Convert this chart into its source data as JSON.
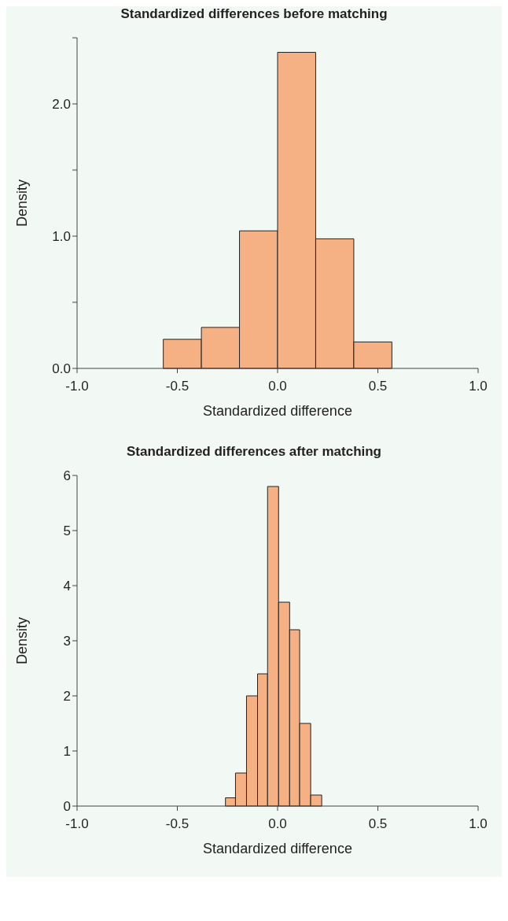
{
  "chart_data": [
    {
      "type": "histogram",
      "title": "Standardized differences before matching",
      "xlabel": "Standardized difference",
      "ylabel": "Density",
      "color": "#f5b183",
      "bins": [
        -0.57,
        -0.38,
        -0.19,
        0,
        0.19,
        0.38,
        0.57
      ],
      "values": [
        0.22,
        0.31,
        1.04,
        2.39,
        0.98,
        0.2
      ],
      "xlim": [
        -1,
        1
      ],
      "xticks": [
        {
          "value": -1,
          "label": "-1.0"
        },
        {
          "value": -0.5,
          "label": "-0.5"
        },
        {
          "value": 0,
          "label": "0.0"
        },
        {
          "value": 0.5,
          "label": "0.5"
        },
        {
          "value": 1,
          "label": "1.0"
        }
      ],
      "ylim": [
        0,
        2.5
      ],
      "yticks": [
        {
          "value": 0,
          "label": "0.0"
        },
        {
          "value": 0.5,
          "label": null
        },
        {
          "value": 1,
          "label": "1.0"
        },
        {
          "value": 1.5,
          "label": null
        },
        {
          "value": 2,
          "label": "2.0"
        },
        {
          "value": 2.5,
          "label": null
        }
      ],
      "grid": false
    },
    {
      "type": "histogram",
      "title": "Standardized differences after matching",
      "xlabel": "Standardized difference",
      "ylabel": "Density",
      "color": "#f5b183",
      "bins": [
        -0.26,
        -0.21,
        -0.155,
        -0.1,
        -0.05,
        0.005,
        0.06,
        0.11,
        0.165,
        0.22
      ],
      "values": [
        0.15,
        0.6,
        2.0,
        2.4,
        5.8,
        3.7,
        3.2,
        1.5,
        0.2
      ],
      "xlim": [
        -1,
        1
      ],
      "xticks": [
        {
          "value": -1,
          "label": "-1.0"
        },
        {
          "value": -0.5,
          "label": "-0.5"
        },
        {
          "value": 0,
          "label": "0.0"
        },
        {
          "value": 0.5,
          "label": "0.5"
        },
        {
          "value": 1,
          "label": "1.0"
        }
      ],
      "ylim": [
        0,
        6
      ],
      "yticks": [
        0,
        1,
        2,
        3,
        4,
        5,
        6
      ],
      "grid": false
    }
  ]
}
